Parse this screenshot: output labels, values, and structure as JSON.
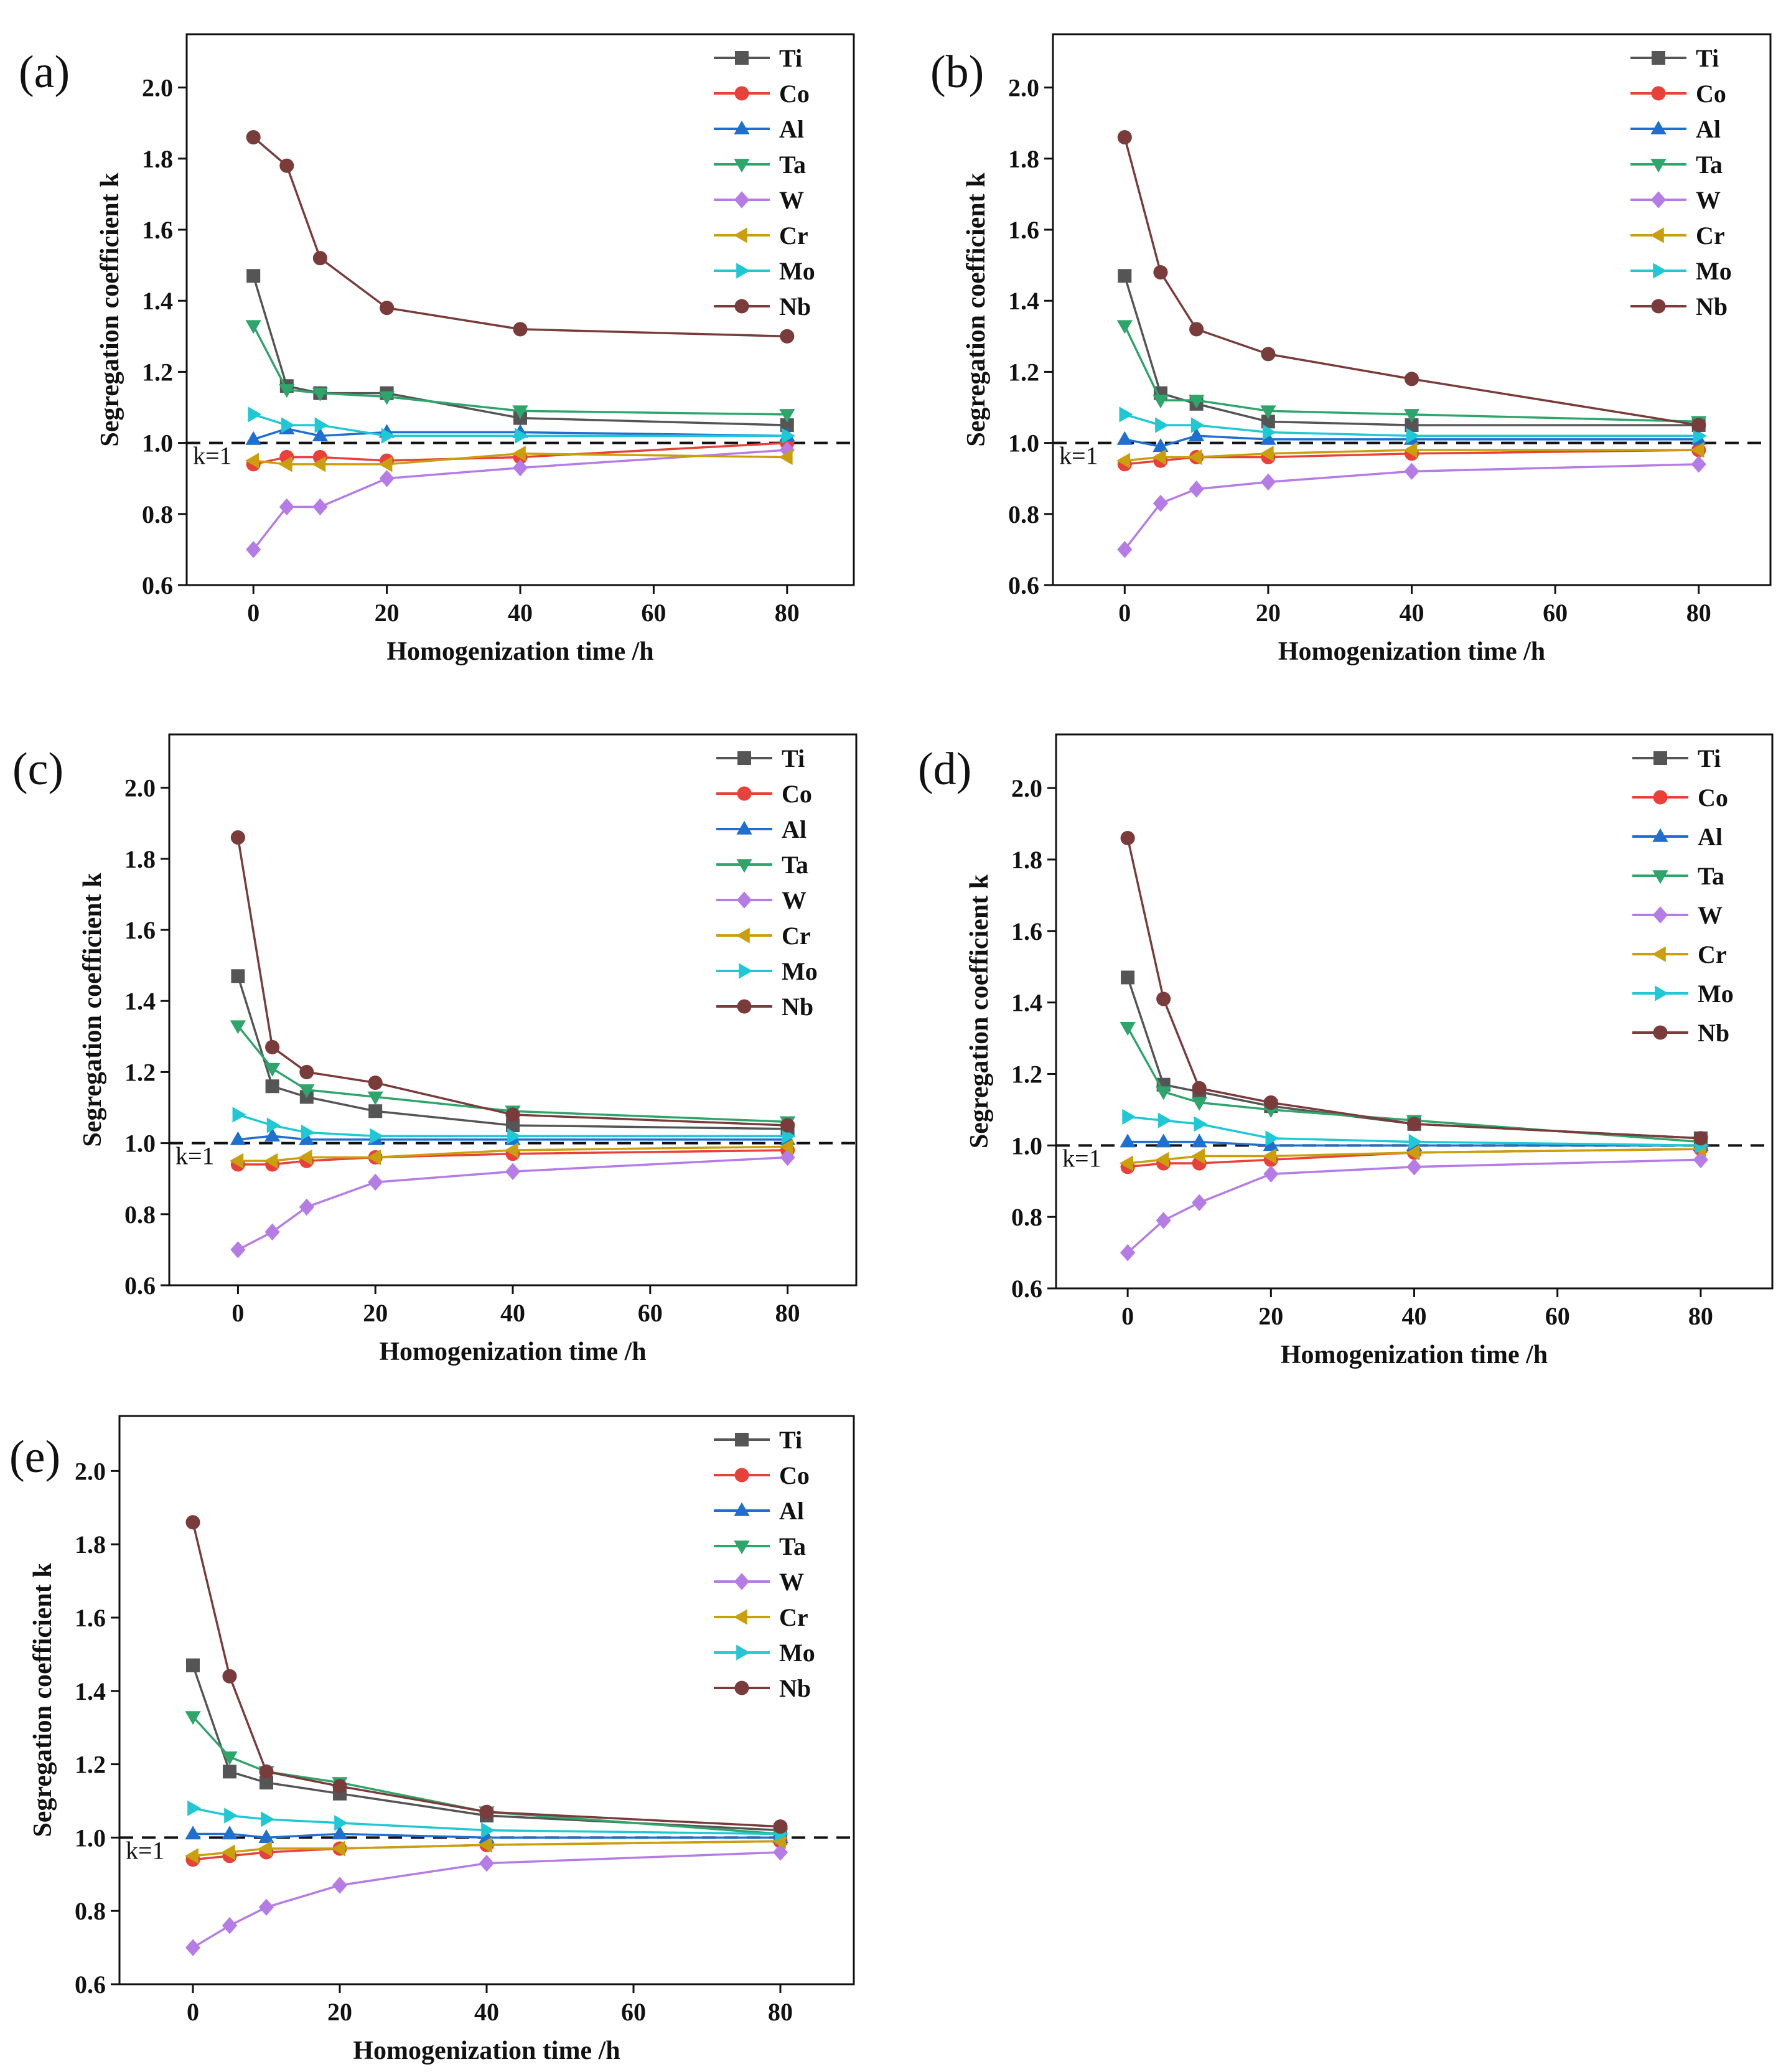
{
  "figure": {
    "xlabel": "Homogenization time /h",
    "ylabel": "Segregation coefficient k",
    "reference_label": "k=1",
    "reference_value": 1.0
  },
  "series_styles": [
    {
      "name": "Ti",
      "color": "#555555",
      "marker": "square"
    },
    {
      "name": "Co",
      "color": "#e8413a",
      "marker": "circle"
    },
    {
      "name": "Al",
      "color": "#1f6fd1",
      "marker": "triangle-up"
    },
    {
      "name": "Ta",
      "color": "#2ea56b",
      "marker": "triangle-down"
    },
    {
      "name": "W",
      "color": "#b57ce6",
      "marker": "diamond"
    },
    {
      "name": "Cr",
      "color": "#c9a00c",
      "marker": "triangle-left"
    },
    {
      "name": "Mo",
      "color": "#1ec8d4",
      "marker": "triangle-right"
    },
    {
      "name": "Nb",
      "color": "#7a3b3b",
      "marker": "circle"
    }
  ],
  "chart_data": [
    {
      "type": "line",
      "panel": "(a)",
      "title": "",
      "xlabel": "Homogenization time /h",
      "ylabel": "Segregation coefficient k",
      "x": [
        0,
        5,
        10,
        20,
        40,
        80
      ],
      "xlim": [
        -10,
        90
      ],
      "ylim": [
        0.6,
        2.15
      ],
      "xticks": [
        "0",
        "20",
        "40",
        "60",
        "80"
      ],
      "yticks": [
        "0.6",
        "0.8",
        "1.0",
        "1.2",
        "1.4",
        "1.6",
        "1.8",
        "2.0"
      ],
      "legend": "top-right",
      "series": [
        {
          "name": "Ti",
          "values": [
            1.47,
            1.16,
            1.14,
            1.14,
            1.07,
            1.05
          ]
        },
        {
          "name": "Co",
          "values": [
            0.94,
            0.96,
            0.96,
            0.95,
            0.96,
            1.0
          ]
        },
        {
          "name": "Al",
          "values": [
            1.01,
            1.04,
            1.02,
            1.03,
            1.03,
            1.02
          ]
        },
        {
          "name": "Ta",
          "values": [
            1.33,
            1.15,
            1.14,
            1.13,
            1.09,
            1.08
          ]
        },
        {
          "name": "W",
          "values": [
            0.7,
            0.82,
            0.82,
            0.9,
            0.93,
            0.98
          ]
        },
        {
          "name": "Cr",
          "values": [
            0.95,
            0.94,
            0.94,
            0.94,
            0.97,
            0.96
          ]
        },
        {
          "name": "Mo",
          "values": [
            1.08,
            1.05,
            1.05,
            1.02,
            1.02,
            1.02
          ]
        },
        {
          "name": "Nb",
          "values": [
            1.86,
            1.78,
            1.52,
            1.38,
            1.32,
            1.3
          ]
        }
      ]
    },
    {
      "type": "line",
      "panel": "(b)",
      "title": "",
      "xlabel": "Homogenization time /h",
      "ylabel": "Segregation coefficient k",
      "x": [
        0,
        5,
        10,
        20,
        40,
        80
      ],
      "xlim": [
        -10,
        90
      ],
      "ylim": [
        0.6,
        2.15
      ],
      "xticks": [
        "0",
        "20",
        "40",
        "60",
        "80"
      ],
      "yticks": [
        "0.6",
        "0.8",
        "1.0",
        "1.2",
        "1.4",
        "1.6",
        "1.8",
        "2.0"
      ],
      "legend": "top-right",
      "series": [
        {
          "name": "Ti",
          "values": [
            1.47,
            1.14,
            1.11,
            1.06,
            1.05,
            1.05
          ]
        },
        {
          "name": "Co",
          "values": [
            0.94,
            0.95,
            0.96,
            0.96,
            0.97,
            0.98
          ]
        },
        {
          "name": "Al",
          "values": [
            1.01,
            0.99,
            1.02,
            1.01,
            1.01,
            1.01
          ]
        },
        {
          "name": "Ta",
          "values": [
            1.33,
            1.12,
            1.12,
            1.09,
            1.08,
            1.06
          ]
        },
        {
          "name": "W",
          "values": [
            0.7,
            0.83,
            0.87,
            0.89,
            0.92,
            0.94
          ]
        },
        {
          "name": "Cr",
          "values": [
            0.95,
            0.96,
            0.96,
            0.97,
            0.98,
            0.98
          ]
        },
        {
          "name": "Mo",
          "values": [
            1.08,
            1.05,
            1.05,
            1.03,
            1.02,
            1.02
          ]
        },
        {
          "name": "Nb",
          "values": [
            1.86,
            1.48,
            1.32,
            1.25,
            1.18,
            1.05
          ]
        }
      ]
    },
    {
      "type": "line",
      "panel": "(c)",
      "title": "",
      "xlabel": "Homogenization time /h",
      "ylabel": "Segregation coefficient k",
      "x": [
        0,
        5,
        10,
        20,
        40,
        80
      ],
      "xlim": [
        -10,
        90
      ],
      "ylim": [
        0.6,
        2.15
      ],
      "xticks": [
        "0",
        "20",
        "40",
        "60",
        "80"
      ],
      "yticks": [
        "0.6",
        "0.8",
        "1.0",
        "1.2",
        "1.4",
        "1.6",
        "1.8",
        "2.0"
      ],
      "legend": "top-right",
      "series": [
        {
          "name": "Ti",
          "values": [
            1.47,
            1.16,
            1.13,
            1.09,
            1.05,
            1.04
          ]
        },
        {
          "name": "Co",
          "values": [
            0.94,
            0.94,
            0.95,
            0.96,
            0.97,
            0.98
          ]
        },
        {
          "name": "Al",
          "values": [
            1.01,
            1.02,
            1.01,
            1.01,
            1.01,
            1.01
          ]
        },
        {
          "name": "Ta",
          "values": [
            1.33,
            1.21,
            1.15,
            1.13,
            1.09,
            1.06
          ]
        },
        {
          "name": "W",
          "values": [
            0.7,
            0.75,
            0.82,
            0.89,
            0.92,
            0.96
          ]
        },
        {
          "name": "Cr",
          "values": [
            0.95,
            0.95,
            0.96,
            0.96,
            0.98,
            0.99
          ]
        },
        {
          "name": "Mo",
          "values": [
            1.08,
            1.05,
            1.03,
            1.02,
            1.02,
            1.02
          ]
        },
        {
          "name": "Nb",
          "values": [
            1.86,
            1.27,
            1.2,
            1.17,
            1.08,
            1.05
          ]
        }
      ]
    },
    {
      "type": "line",
      "panel": "(d)",
      "title": "",
      "xlabel": "Homogenization time /h",
      "ylabel": "Segregation coefficient k",
      "x": [
        0,
        5,
        10,
        20,
        40,
        80
      ],
      "xlim": [
        -10,
        90
      ],
      "ylim": [
        0.6,
        2.15
      ],
      "xticks": [
        "0",
        "20",
        "40",
        "60",
        "80"
      ],
      "yticks": [
        "0.6",
        "0.8",
        "1.0",
        "1.2",
        "1.4",
        "1.6",
        "1.8",
        "2.0"
      ],
      "legend": "top-right",
      "series": [
        {
          "name": "Ti",
          "values": [
            1.47,
            1.17,
            1.15,
            1.11,
            1.06,
            1.02
          ]
        },
        {
          "name": "Co",
          "values": [
            0.94,
            0.95,
            0.95,
            0.96,
            0.98,
            0.99
          ]
        },
        {
          "name": "Al",
          "values": [
            1.01,
            1.01,
            1.01,
            1.0,
            1.0,
            1.0
          ]
        },
        {
          "name": "Ta",
          "values": [
            1.33,
            1.15,
            1.12,
            1.1,
            1.07,
            1.01
          ]
        },
        {
          "name": "W",
          "values": [
            0.7,
            0.79,
            0.84,
            0.92,
            0.94,
            0.96
          ]
        },
        {
          "name": "Cr",
          "values": [
            0.95,
            0.96,
            0.97,
            0.97,
            0.98,
            0.99
          ]
        },
        {
          "name": "Mo",
          "values": [
            1.08,
            1.07,
            1.06,
            1.02,
            1.01,
            1.0
          ]
        },
        {
          "name": "Nb",
          "values": [
            1.86,
            1.41,
            1.16,
            1.12,
            1.06,
            1.02
          ]
        }
      ]
    },
    {
      "type": "line",
      "panel": "(e)",
      "title": "",
      "xlabel": "Homogenization time /h",
      "ylabel": "Segregation coefficient k",
      "x": [
        0,
        5,
        10,
        20,
        40,
        80
      ],
      "xlim": [
        -10,
        90
      ],
      "ylim": [
        0.6,
        2.15
      ],
      "xticks": [
        "0",
        "20",
        "40",
        "60",
        "80"
      ],
      "yticks": [
        "0.6",
        "0.8",
        "1.0",
        "1.2",
        "1.4",
        "1.6",
        "1.8",
        "2.0"
      ],
      "legend": "top-right",
      "series": [
        {
          "name": "Ti",
          "values": [
            1.47,
            1.18,
            1.15,
            1.12,
            1.06,
            1.02
          ]
        },
        {
          "name": "Co",
          "values": [
            0.94,
            0.95,
            0.96,
            0.97,
            0.98,
            0.99
          ]
        },
        {
          "name": "Al",
          "values": [
            1.01,
            1.01,
            1.0,
            1.01,
            1.0,
            1.0
          ]
        },
        {
          "name": "Ta",
          "values": [
            1.33,
            1.22,
            1.18,
            1.15,
            1.07,
            1.01
          ]
        },
        {
          "name": "W",
          "values": [
            0.7,
            0.76,
            0.81,
            0.87,
            0.93,
            0.96
          ]
        },
        {
          "name": "Cr",
          "values": [
            0.95,
            0.96,
            0.97,
            0.97,
            0.98,
            0.99
          ]
        },
        {
          "name": "Mo",
          "values": [
            1.08,
            1.06,
            1.05,
            1.04,
            1.02,
            1.01
          ]
        },
        {
          "name": "Nb",
          "values": [
            1.86,
            1.44,
            1.18,
            1.14,
            1.07,
            1.03
          ]
        }
      ]
    }
  ]
}
